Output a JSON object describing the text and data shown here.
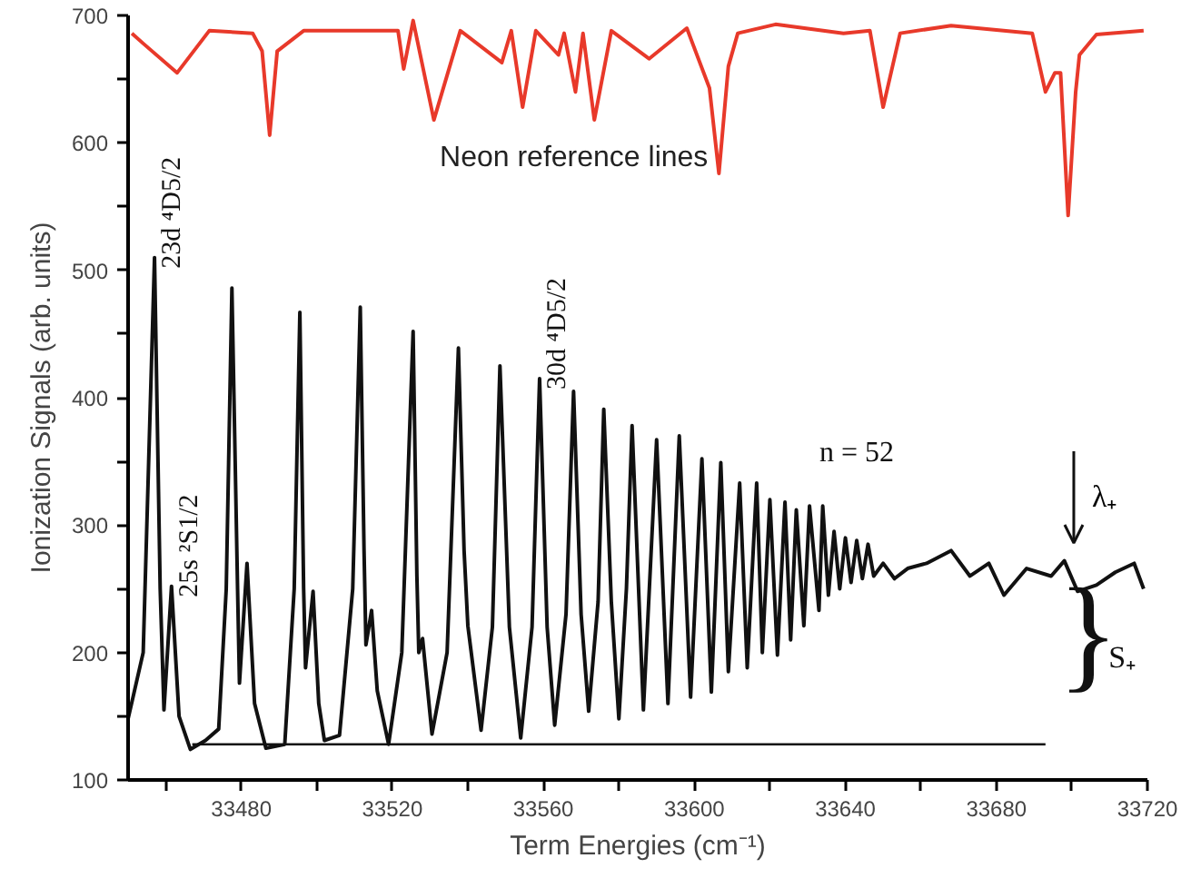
{
  "chart_data": {
    "type": "line",
    "xlabel": "Term Energies (cm⁻¹)",
    "ylabel": "Ionization Signals (arb. units)",
    "xlim": [
      33450,
      33720
    ],
    "ylim": [
      100,
      700
    ],
    "xticks": [
      {
        "value": 33460,
        "label": null
      },
      33480,
      {
        "value": 33500,
        "label": null
      },
      33520,
      {
        "value": 33540,
        "label": null
      },
      33560,
      {
        "value": 33580,
        "label": null
      },
      33600,
      {
        "value": 33620,
        "label": null
      },
      33640,
      {
        "value": 33660,
        "label": null
      },
      33680,
      {
        "value": 33700,
        "label": null
      },
      33720
    ],
    "yticks": [
      100,
      {
        "value": 150,
        "label": null
      },
      200,
      {
        "value": 250,
        "label": null
      },
      300,
      {
        "value": 350,
        "label": null
      },
      400,
      {
        "value": 450,
        "label": null
      },
      500,
      {
        "value": 550,
        "label": null
      },
      600,
      {
        "value": 650,
        "label": null
      },
      700
    ],
    "grid": false,
    "marker": "none",
    "line_style": "solid",
    "series": [
      {
        "color": "#e8392a",
        "x": [
          33451,
          33454,
          33463,
          33471.5,
          33483,
          33485.5,
          33487.5,
          33489.5,
          33496.5,
          33521.5,
          33523,
          33525.5,
          33531,
          33538,
          33549,
          33551.5,
          33554.5,
          33558,
          33564,
          33565.5,
          33568.5,
          33570.5,
          33573.5,
          33578,
          33588,
          33598,
          33604,
          33606.5,
          33609,
          33611.5,
          33621.5,
          33639.5,
          33646.5,
          33650,
          33654.5,
          33668,
          33689.5,
          33693,
          33695.5,
          33697,
          33699,
          33701,
          33702,
          33706.5,
          33719
        ],
        "values": [
          686,
          678,
          655,
          688,
          686,
          672,
          606,
          672,
          688,
          688,
          658,
          696,
          618,
          688,
          663,
          688,
          628,
          688,
          669,
          686,
          640,
          686,
          618,
          688,
          666,
          690,
          643,
          576,
          660,
          686,
          693,
          686,
          688,
          628,
          686,
          692,
          686,
          640,
          655,
          655,
          543,
          640,
          669,
          685,
          688
        ]
      },
      {
        "color": "#111111",
        "x": [
          33450,
          33454,
          33457,
          33458.5,
          33459.5,
          33461.5,
          33463.5,
          33466.5,
          33470.5,
          33474,
          33476,
          33477.5,
          33479,
          33479.5,
          33481.5,
          33483.5,
          33486.5,
          33491.5,
          33494,
          33495.5,
          33496.5,
          33497,
          33499,
          33500.5,
          33502,
          33506,
          33509.5,
          33511.5,
          33512.5,
          33513,
          33514.5,
          33516,
          33519,
          33522.5,
          33525.5,
          33526.5,
          33527,
          33528,
          33530.5,
          33534.5,
          33537.5,
          33539,
          33540,
          33543.5,
          33546.5,
          33548.5,
          33551,
          33554,
          33557,
          33559,
          33561,
          33563,
          33566,
          33568,
          33570,
          33572,
          33574.5,
          33576,
          33578,
          33580,
          33582,
          33583.5,
          33586.5,
          33590,
          33593,
          33596,
          33599,
          33602,
          33604.5,
          33607,
          33609,
          33612,
          33614,
          33616.5,
          33618,
          33620,
          33622,
          33624,
          33625.5,
          33627,
          33629,
          33630.5,
          33633,
          33634,
          33635.5,
          33637,
          33638.5,
          33640,
          33641.5,
          33643,
          33644.5,
          33646,
          33647.5,
          33650,
          33653,
          33656.5,
          33661.5,
          33668,
          33673,
          33678,
          33682,
          33688,
          33694.5,
          33698,
          33701.5,
          33706.5,
          33711.5,
          33716.5,
          33719
        ],
        "values": [
          148,
          200,
          510,
          250,
          155,
          252,
          150,
          124,
          131,
          140,
          250,
          486,
          250,
          176,
          270,
          160,
          125,
          128,
          250,
          467,
          250,
          188,
          248,
          160,
          131,
          135,
          250,
          471,
          280,
          206,
          233,
          170,
          128,
          200,
          452,
          260,
          200,
          211,
          136,
          200,
          439,
          280,
          221,
          139,
          220,
          425,
          220,
          133,
          220,
          415,
          220,
          143,
          230,
          405,
          230,
          154,
          240,
          391,
          240,
          148,
          250,
          378,
          155,
          367,
          160,
          370,
          165,
          352,
          169,
          349,
          185,
          333,
          188,
          333,
          200,
          320,
          198,
          318,
          210,
          312,
          221,
          315,
          233,
          315,
          245,
          295,
          250,
          290,
          255,
          288,
          258,
          285,
          260,
          270,
          258,
          266,
          270,
          280,
          260,
          270,
          245,
          266,
          260,
          272,
          248,
          253,
          263,
          270,
          250
        ]
      },
      {
        "color": "#111111",
        "x": [
          33467,
          33693
        ],
        "values": [
          128,
          128
        ]
      }
    ],
    "annotations": [
      "Neon reference lines",
      "}",
      "S₊",
      {
        "text": "n = 52",
        "x": 33643,
        "y": 288
      },
      {
        "text": "23d ⁴D5/2",
        "x": 33457,
        "y": 510
      },
      {
        "text": "25s ²S1/2",
        "x": 33461.5,
        "y": 252
      },
      {
        "text": "30d ⁴D5/2",
        "x": 33559,
        "y": 415
      }
    ],
    "ref_lines": [
      {
        "axis": "x",
        "value": 33700.5,
        "label": "λ₊"
      }
    ]
  }
}
